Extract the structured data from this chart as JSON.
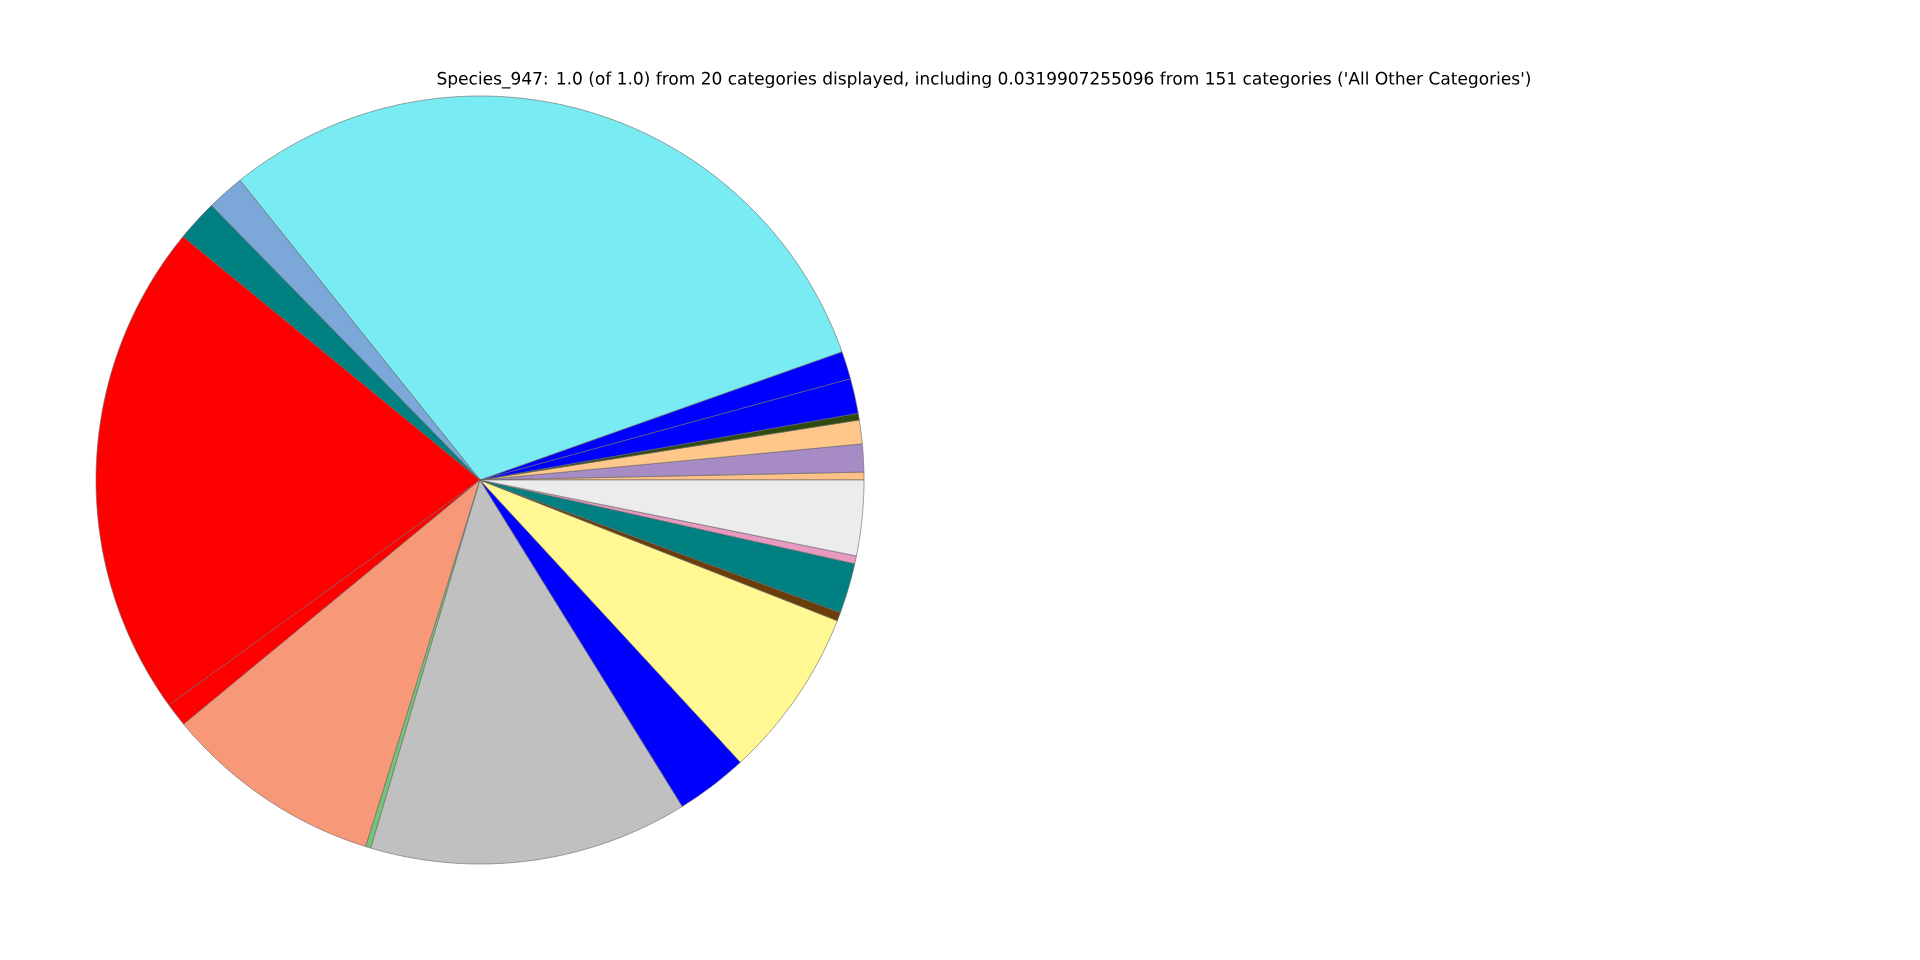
{
  "chart_data": {
    "type": "pie",
    "title": "Species_947: 1.0 (of 1.0) from 20 categories displayed, including 0.0319907255096 from 151 categories ('All Other Categories')",
    "categories": [
      null,
      null,
      null,
      null,
      null,
      null,
      null,
      null,
      null,
      null,
      null,
      null,
      null,
      null,
      null,
      null,
      null,
      null,
      null,
      null
    ],
    "values": [
      0.33,
      1.17,
      1.0,
      0.28,
      1.47,
      1.17,
      30.33,
      1.58,
      1.75,
      20.89,
      1.0,
      9.22,
      0.22,
      13.42,
      3.03,
      7.17,
      0.36,
      2.11,
      0.33,
      3.17
    ],
    "colors": [
      "#fdc086",
      "#a68bc4",
      "#ffc88a",
      "#2d4a0f",
      "#0000ff",
      "#0000ff",
      "#78ecf2",
      "#7ba7d9",
      "#008080",
      "#ff0000",
      "#ff0000",
      "#f79878",
      "#74c476",
      "#c0c0c0",
      "#0000ff",
      "#fff893",
      "#6b3d0a",
      "#008080",
      "#e899c0",
      "#ececec"
    ]
  }
}
